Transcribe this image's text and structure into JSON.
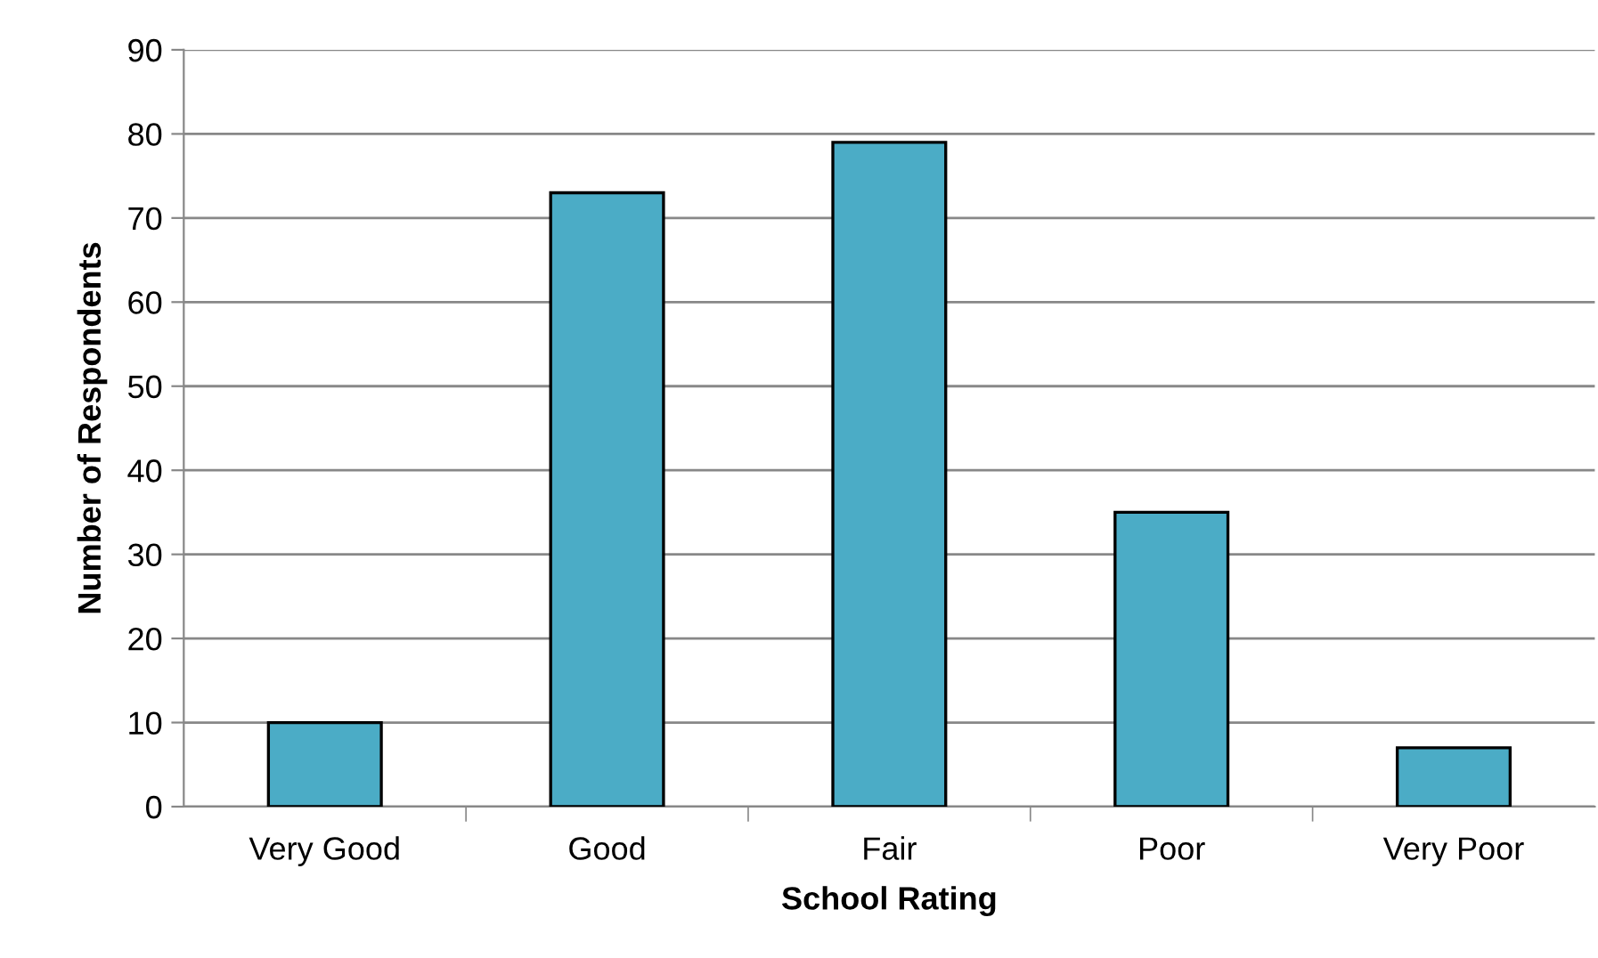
{
  "chart_data": {
    "type": "bar",
    "xlabel": "School Rating",
    "ylabel": "Number of Respondents",
    "categories": [
      "Very Good",
      "Good",
      "Fair",
      "Poor",
      "Very Poor"
    ],
    "values": [
      10,
      73,
      79,
      35,
      7
    ],
    "color": "#4bacc6",
    "ylim": [
      0,
      90
    ],
    "yticks": [
      0,
      10,
      20,
      30,
      40,
      50,
      60,
      70,
      80,
      90
    ],
    "grid": "y",
    "legend": false
  }
}
